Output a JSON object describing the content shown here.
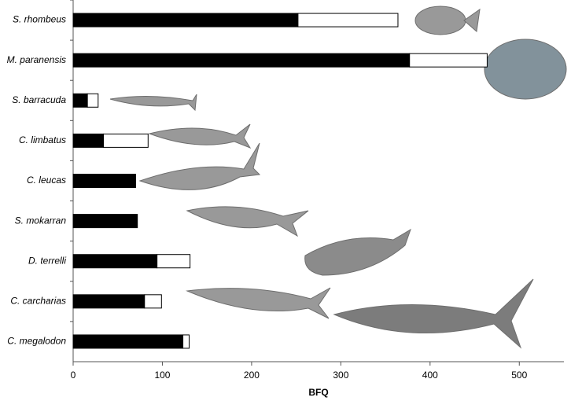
{
  "chart_data": {
    "type": "bar",
    "orientation": "horizontal",
    "stacked": true,
    "x_label": "BFQ",
    "categories": [
      "S. rhombeus",
      "M. paranensis",
      "S. barracuda",
      "C. limbatus",
      "C. leucas",
      "S. mokarran",
      "D. terrelli",
      "C. carcharias",
      "C. megalodon"
    ],
    "series": [
      {
        "color": "#000000",
        "values": [
          252,
          377,
          16,
          34,
          70,
          72,
          94,
          80,
          123
        ]
      },
      {
        "color": "#ffffff",
        "values": [
          112,
          87,
          12,
          50,
          0,
          0,
          37,
          19,
          7
        ]
      }
    ],
    "xlim": [
      0,
      550
    ],
    "xticks": [
      0,
      100,
      200,
      300,
      400,
      500
    ]
  }
}
